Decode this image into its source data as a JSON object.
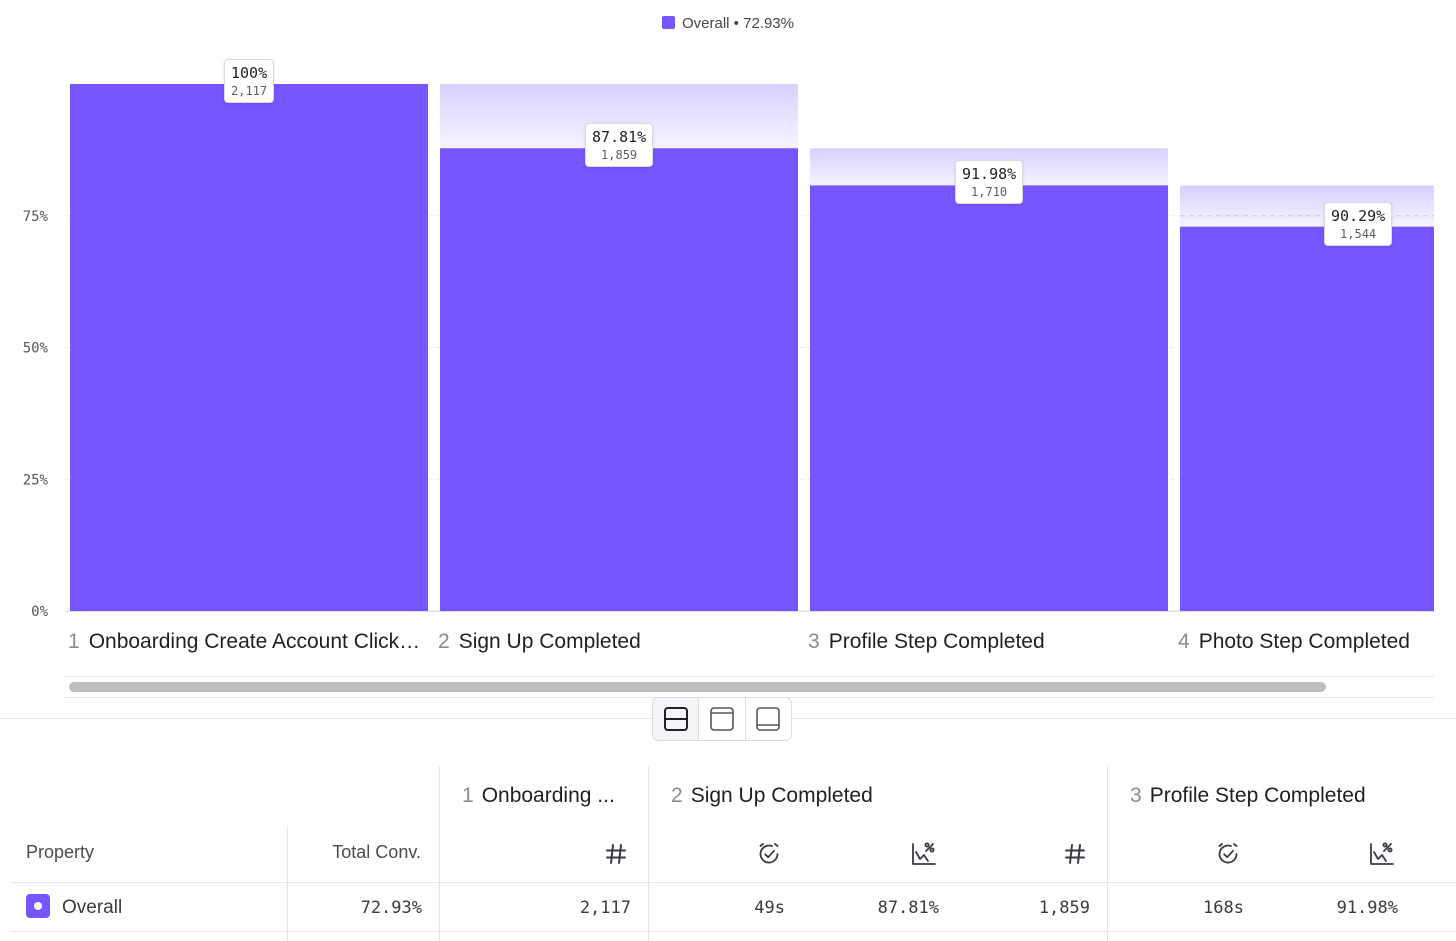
{
  "legend": {
    "label": "Overall • 72.93%",
    "color": "#7856ff"
  },
  "chart_data": {
    "type": "bar",
    "title": "",
    "xlabel": "",
    "ylabel": "",
    "ylim": [
      0,
      100
    ],
    "yticks": [
      "0%",
      "25%",
      "50%",
      "75%"
    ],
    "categories": [
      "Onboarding Create Account Clicked",
      "Sign Up Completed",
      "Profile Step Completed",
      "Photo Step Completed"
    ],
    "category_display": [
      "Onboarding Create Account Click…",
      "Sign Up Completed",
      "Profile Step Completed",
      "Photo Step Completed"
    ],
    "series": [
      {
        "name": "Overall",
        "values": [
          100,
          87.81,
          80.77,
          72.93
        ],
        "color": "#7856ff"
      }
    ],
    "previous_step_values": [
      null,
      100,
      87.81,
      80.77
    ],
    "step_conversion_labels": [
      "100%",
      "87.81%",
      "91.98%",
      "90.29%"
    ],
    "count_labels": [
      "2,117",
      "1,859",
      "1,710",
      "1,544"
    ]
  },
  "table": {
    "steps": [
      {
        "num": "1",
        "name": "Onboarding ..."
      },
      {
        "num": "2",
        "name": "Sign Up Completed"
      },
      {
        "num": "3",
        "name": "Profile Step Completed"
      }
    ],
    "headers": {
      "property": "Property",
      "total_conv": "Total Conv."
    },
    "rows": [
      {
        "property": "Overall",
        "color": "#7856ff",
        "total_conv": "72.93%",
        "step1_count": "2,117",
        "step2_time": "49s",
        "step2_conv": "87.81%",
        "step2_count": "1,859",
        "step3_time": "168s",
        "step3_conv": "91.98%"
      }
    ]
  },
  "icons": {
    "count": "hash-icon",
    "time": "clock-check-icon",
    "conversion": "chart-percent-icon"
  }
}
